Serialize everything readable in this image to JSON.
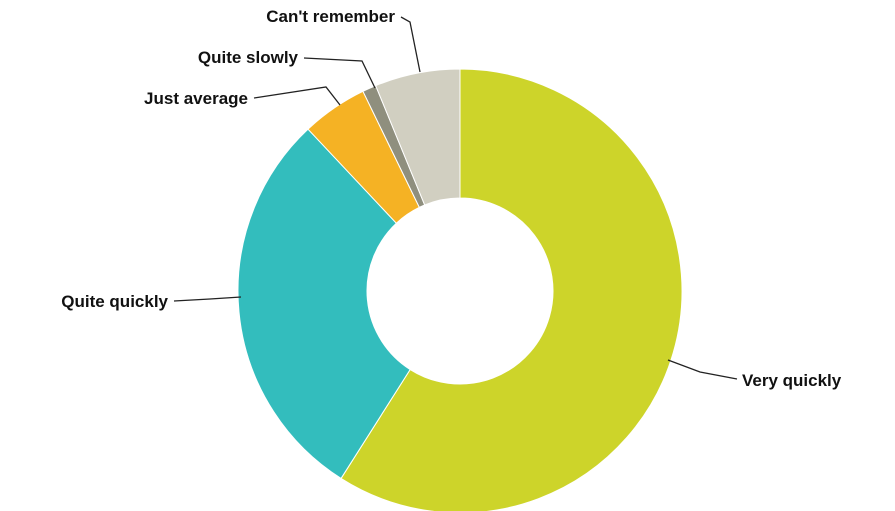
{
  "chart_data": {
    "type": "pie",
    "donut": true,
    "categories": [
      "Very quickly",
      "Quite quickly",
      "Just average",
      "Quite slowly",
      "Can't remember"
    ],
    "values": [
      59,
      29,
      4.8,
      1.0,
      6.2
    ],
    "colors": [
      "#cdd42a",
      "#33bdbd",
      "#f5b224",
      "#8f8f7e",
      "#d1cfc1"
    ],
    "title": "",
    "legend": "none"
  }
}
